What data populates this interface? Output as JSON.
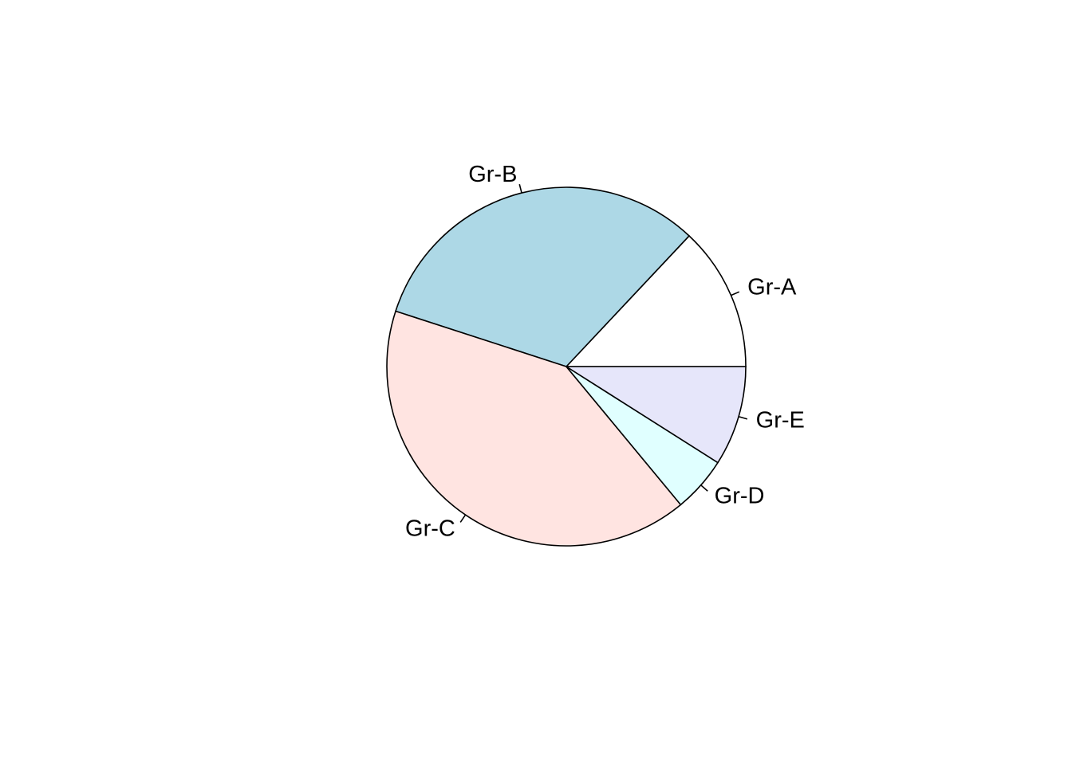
{
  "chart_data": {
    "type": "pie",
    "title": "",
    "start_angle_deg": 0,
    "direction": "counterclockwise",
    "slices": [
      {
        "label": "Gr-A",
        "value": 13,
        "color": "#FFFFFF"
      },
      {
        "label": "Gr-B",
        "value": 32,
        "color": "#ADD8E6"
      },
      {
        "label": "Gr-C",
        "value": 41,
        "color": "#FFE4E1"
      },
      {
        "label": "Gr-D",
        "value": 5,
        "color": "#E0FFFF"
      },
      {
        "label": "Gr-E",
        "value": 9,
        "color": "#E6E6FA"
      }
    ]
  }
}
